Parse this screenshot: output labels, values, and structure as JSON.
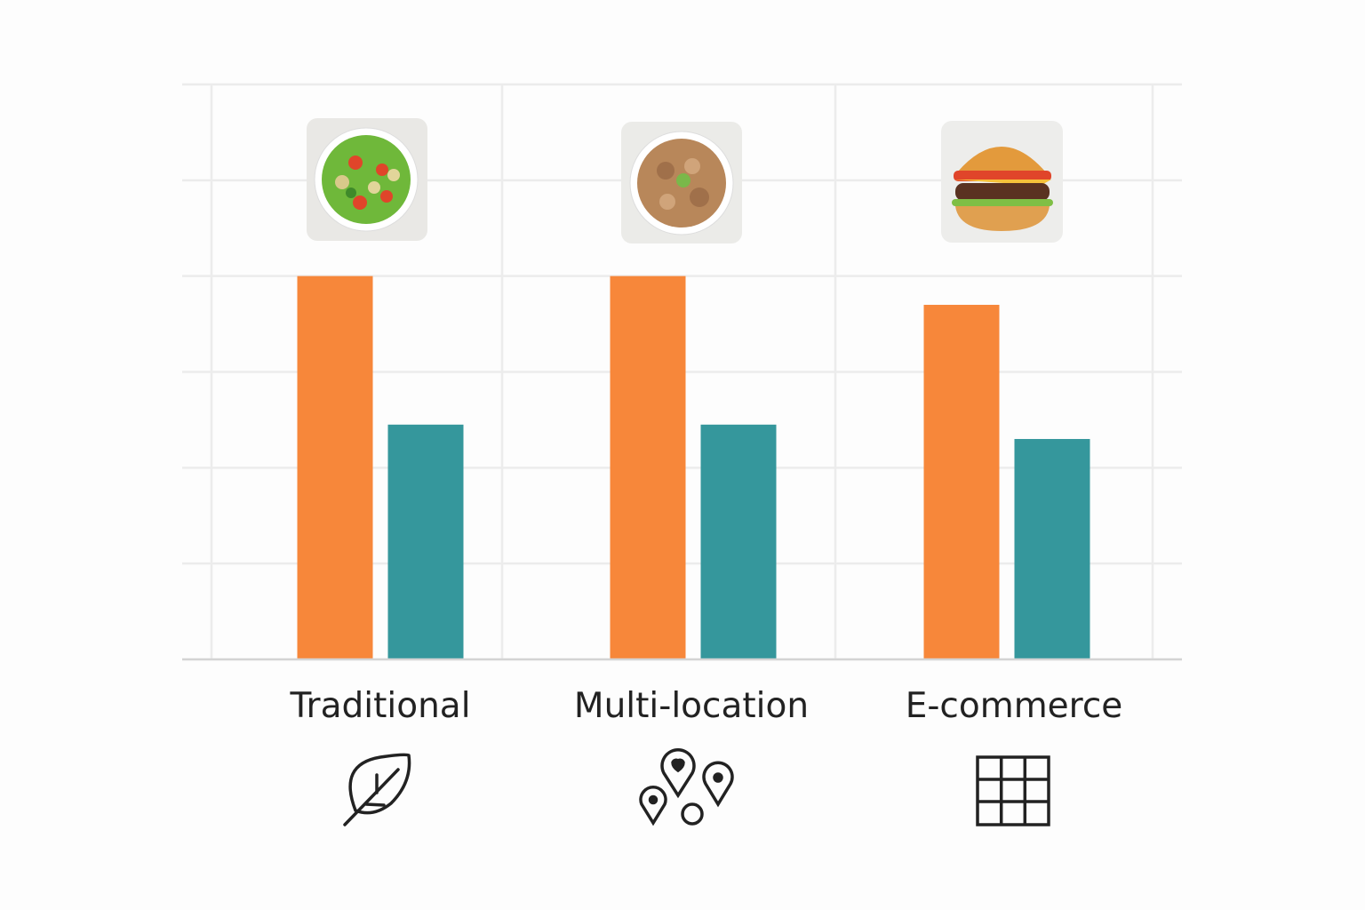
{
  "chart_data": {
    "type": "bar",
    "categories": [
      "Traditional",
      "Multi-location",
      "E-commerce"
    ],
    "series": [
      {
        "values": [
          4.0,
          4.0,
          3.7
        ],
        "color": "#f7873a"
      },
      {
        "values": [
          2.45,
          2.45,
          2.3
        ],
        "color": "#35979c"
      }
    ],
    "ylim": [
      0,
      6
    ],
    "grid": true,
    "xlabel": "",
    "ylabel": "",
    "category_images": [
      "salad-bowl",
      "grain-bowl",
      "cheeseburger"
    ],
    "category_icons": [
      "leaf-icon",
      "map-pins-icon",
      "grid-icon"
    ]
  }
}
